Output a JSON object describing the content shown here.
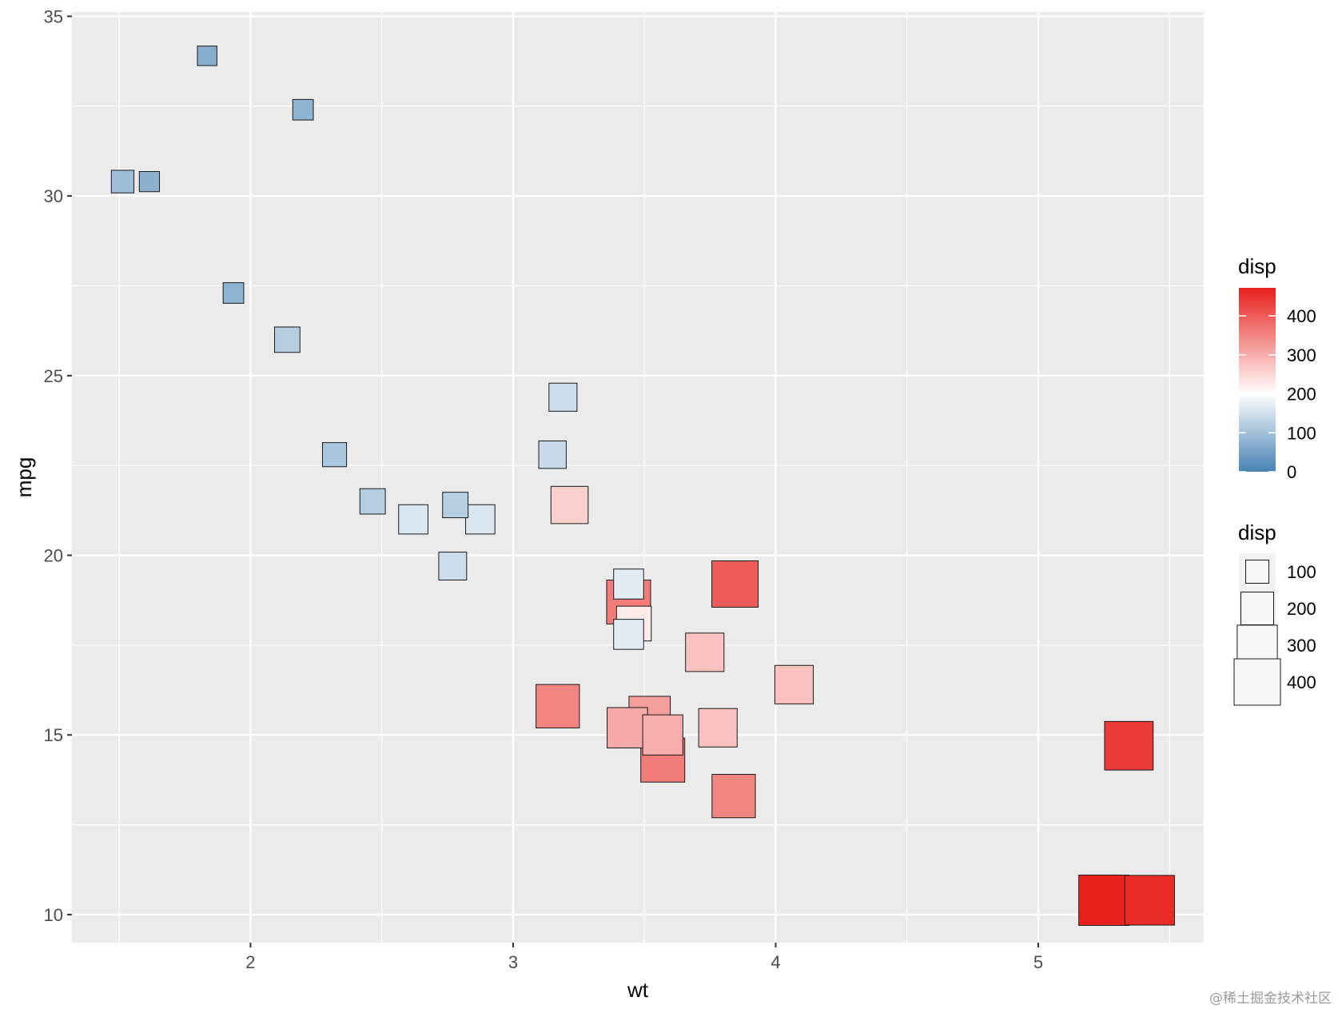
{
  "chart_data": {
    "type": "scatter",
    "xlabel": "wt",
    "ylabel": "mpg",
    "xlim": [
      1.32,
      5.63
    ],
    "ylim": [
      9.22,
      35.12
    ],
    "x_ticks": [
      2,
      3,
      4,
      5
    ],
    "x_tick_labels": [
      "2",
      "3",
      "4",
      "5"
    ],
    "y_ticks": [
      10,
      15,
      20,
      25,
      30,
      35
    ],
    "y_tick_labels": [
      "10",
      "15",
      "20",
      "25",
      "30",
      "35"
    ],
    "marker": "square",
    "grid": true,
    "legend_position": "right",
    "points": [
      {
        "x": 2.62,
        "y": 21.0,
        "disp": 160
      },
      {
        "x": 2.875,
        "y": 21.0,
        "disp": 160
      },
      {
        "x": 2.32,
        "y": 22.8,
        "disp": 108
      },
      {
        "x": 3.215,
        "y": 21.4,
        "disp": 258
      },
      {
        "x": 3.44,
        "y": 18.7,
        "disp": 360
      },
      {
        "x": 3.46,
        "y": 18.1,
        "disp": 225
      },
      {
        "x": 3.57,
        "y": 14.3,
        "disp": 360
      },
      {
        "x": 3.19,
        "y": 24.4,
        "disp": 146.7
      },
      {
        "x": 3.15,
        "y": 22.8,
        "disp": 140.8
      },
      {
        "x": 3.44,
        "y": 19.2,
        "disp": 167.6
      },
      {
        "x": 3.44,
        "y": 17.8,
        "disp": 167.6
      },
      {
        "x": 4.07,
        "y": 16.4,
        "disp": 275.8
      },
      {
        "x": 3.73,
        "y": 17.3,
        "disp": 275.8
      },
      {
        "x": 3.78,
        "y": 15.2,
        "disp": 275.8
      },
      {
        "x": 5.25,
        "y": 10.4,
        "disp": 472
      },
      {
        "x": 5.424,
        "y": 10.4,
        "disp": 460
      },
      {
        "x": 5.345,
        "y": 14.7,
        "disp": 440
      },
      {
        "x": 2.2,
        "y": 32.4,
        "disp": 78.7
      },
      {
        "x": 1.615,
        "y": 30.4,
        "disp": 75.7
      },
      {
        "x": 1.835,
        "y": 33.9,
        "disp": 71.1
      },
      {
        "x": 2.465,
        "y": 21.5,
        "disp": 120.1
      },
      {
        "x": 3.52,
        "y": 15.5,
        "disp": 318
      },
      {
        "x": 3.435,
        "y": 15.2,
        "disp": 304
      },
      {
        "x": 3.84,
        "y": 13.3,
        "disp": 350
      },
      {
        "x": 3.845,
        "y": 19.2,
        "disp": 400
      },
      {
        "x": 1.935,
        "y": 27.3,
        "disp": 79
      },
      {
        "x": 2.14,
        "y": 26.0,
        "disp": 120.3
      },
      {
        "x": 1.513,
        "y": 30.4,
        "disp": 95.1
      },
      {
        "x": 3.17,
        "y": 15.8,
        "disp": 351
      },
      {
        "x": 2.77,
        "y": 19.7,
        "disp": 145
      },
      {
        "x": 3.57,
        "y": 15.0,
        "disp": 301
      },
      {
        "x": 2.78,
        "y": 21.4,
        "disp": 121
      }
    ],
    "color_scale": {
      "title": "disp",
      "low": "#4682b4",
      "mid": "#ffffff",
      "high": "#e8211d",
      "midpoint": 200,
      "limits": [
        0,
        472
      ],
      "breaks": [
        0,
        100,
        200,
        300,
        400
      ],
      "break_labels": [
        "0",
        "100",
        "200",
        "300",
        "400"
      ]
    },
    "size_scale": {
      "title": "disp",
      "breaks": [
        100,
        200,
        300,
        400
      ],
      "break_labels": [
        "100",
        "200",
        "300",
        "400"
      ]
    },
    "colors": {
      "panel_background": "#ebebeb",
      "grid_major": "#ffffff",
      "point_border": "#1a1a1a"
    }
  },
  "watermark": "@稀土掘金技术社区"
}
